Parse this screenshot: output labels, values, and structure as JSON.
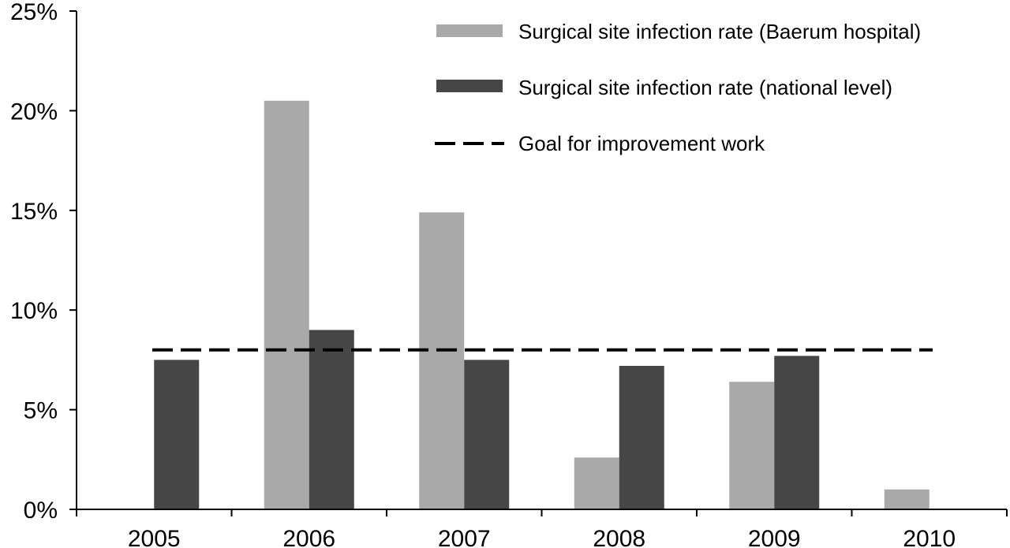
{
  "chart_data": {
    "type": "bar",
    "title": "",
    "xlabel": "",
    "ylabel": "",
    "categories": [
      "2005",
      "2006",
      "2007",
      "2008",
      "2009",
      "2010"
    ],
    "ylim": [
      0,
      25
    ],
    "yticks": [
      "0%",
      "5%",
      "10%",
      "15%",
      "20%",
      "25%"
    ],
    "ytick_values": [
      0,
      5,
      10,
      15,
      20,
      25
    ],
    "series": [
      {
        "name": "Surgical site infection rate (Baerum hospital)",
        "color": "#a9a9a9",
        "values": [
          null,
          20.5,
          14.9,
          2.6,
          6.4,
          1.0
        ]
      },
      {
        "name": "Surgical site infection rate (national level)",
        "color": "#464646",
        "values": [
          7.5,
          9.0,
          7.5,
          7.2,
          7.7,
          null
        ]
      }
    ],
    "reference_line": {
      "name": "Goal for improvement work",
      "value": 8,
      "style": "dashed",
      "color": "#000000"
    },
    "grid": false,
    "legend_position": "top-right"
  }
}
